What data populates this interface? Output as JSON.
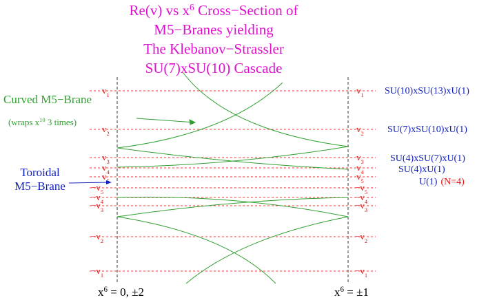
{
  "title": [
    {
      "text": "Re(v) vs x",
      "sup": "6",
      "after": " Cross−Section of"
    },
    {
      "text": "M5−Branes yielding"
    },
    {
      "text": "The Klebanov−Strassler"
    },
    {
      "text": "SU(7)xSU(10) Cascade"
    }
  ],
  "left_labels": {
    "curved": "Curved M5−Brane",
    "wraps": {
      "text": "(wraps x",
      "sup": "10",
      "after": "  3 times)"
    },
    "toroidal": [
      "Toroidal",
      "M5−Brane"
    ]
  },
  "levels": [
    {
      "text": "v",
      "sub": "1"
    },
    {
      "text": "v",
      "sub": "2"
    },
    {
      "text": "v",
      "sub": "3"
    },
    {
      "text": "v",
      "sub": "4"
    },
    {
      "text": "v",
      "sub": "5"
    },
    {
      "text": "−v",
      "sub": "5"
    },
    {
      "text": "−v",
      "sub": "4"
    },
    {
      "text": "−v",
      "sub": "3"
    },
    {
      "text": "−v",
      "sub": "2"
    },
    {
      "text": "−v",
      "sub": "1"
    }
  ],
  "gauge_groups": [
    "SU(10)xSU(13)xU(1)",
    "SU(7)xSU(10)xU(1)",
    "SU(4)xSU(7)xU(1)",
    "SU(4)xU(1)",
    {
      "text": "U(1)",
      "note": "(N=4)"
    }
  ],
  "bottom": [
    {
      "text": "x",
      "sup": "6",
      "after": " = 0, ±2"
    },
    {
      "text": "x",
      "sup": "6",
      "after": " = ±1"
    }
  ]
}
